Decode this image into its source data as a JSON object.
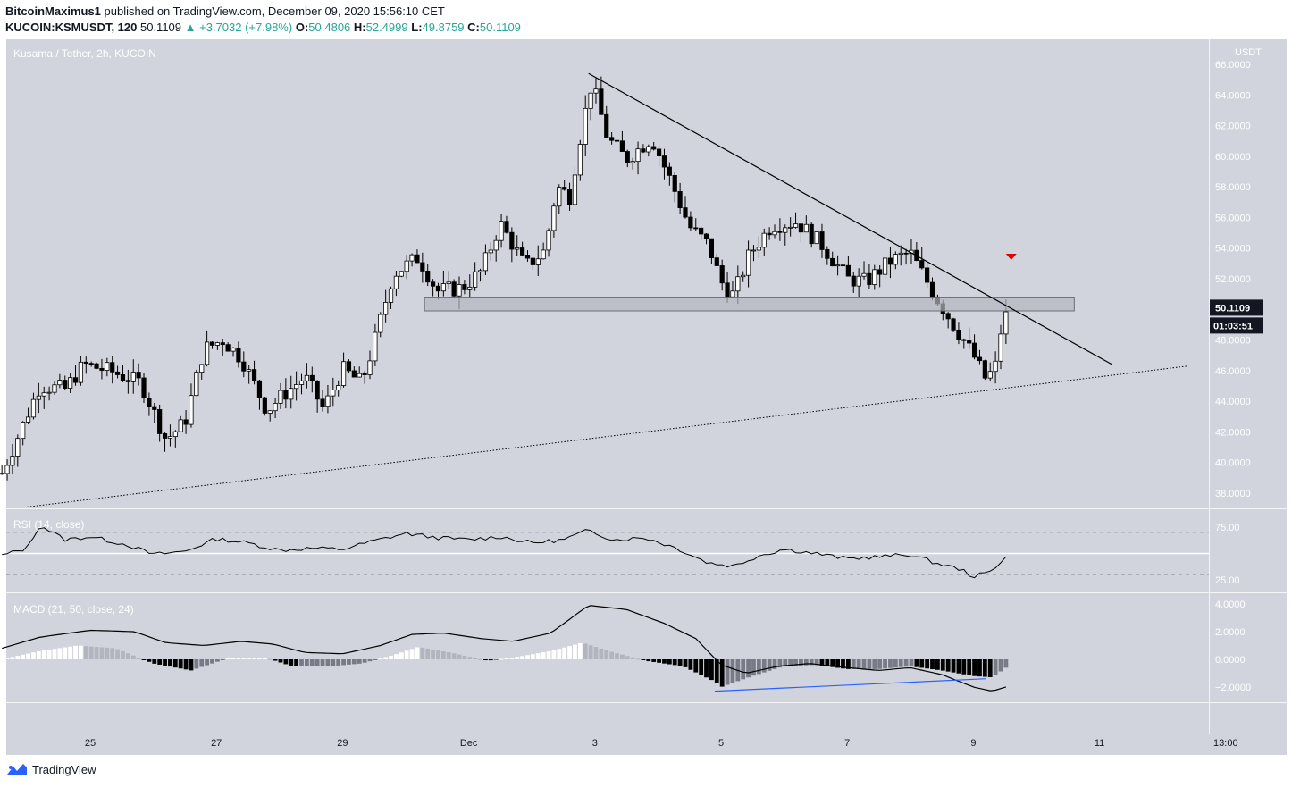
{
  "header": {
    "publisher": "BitcoinMaximus1",
    "published_text": "published on TradingView.com, December 09, 2020 15:56:10 CET",
    "symbol": "KUCOIN:KSMUSDT, 120",
    "last": "50.1109",
    "change": "▲ +3.7032 (+7.98%)",
    "o_label": "O:",
    "o": "50.4806",
    "h_label": "H:",
    "h": "52.4999",
    "l_label": "L:",
    "l": "49.8759",
    "c_label": "C:",
    "c": "50.1109"
  },
  "footer": {
    "brand": "TradingView"
  },
  "colors": {
    "pane_bg": "#d1d4dc",
    "up_candle": "#ffffff",
    "down_candle": "#000000",
    "trendline": "#000000",
    "zone_fill": "#b4b7bf",
    "signal_arrow": "#e00000",
    "divergence_line": "#2962ff",
    "price_label_bg": "#131722"
  },
  "chart_data": [
    {
      "type": "candlestick",
      "title": "Kusama / Tether, 2h, KUCOIN",
      "currency": "USDT",
      "ylim": [
        37,
        67
      ],
      "y_ticks": [
        "66.0000",
        "64.0000",
        "62.0000",
        "60.0000",
        "58.0000",
        "56.0000",
        "54.0000",
        "52.0000",
        "50.0000",
        "48.0000",
        "46.0000",
        "44.0000",
        "42.0000",
        "40.0000",
        "38.0000"
      ],
      "x_ticks": [
        "25",
        "27",
        "29",
        "Dec",
        "3",
        "5",
        "7",
        "9",
        "11",
        "13:00"
      ],
      "last_price_label": "50.1109",
      "countdown_label": "01:03:51",
      "anchors_x_day_price": [
        [
          23.6,
          39.3
        ],
        [
          24.2,
          45.0
        ],
        [
          24.6,
          44.8
        ],
        [
          24.9,
          46.4
        ],
        [
          25.3,
          46.0
        ],
        [
          25.8,
          45.2
        ],
        [
          26.2,
          41.5
        ],
        [
          26.5,
          42.6
        ],
        [
          26.8,
          47.4
        ],
        [
          27.1,
          48.0
        ],
        [
          27.4,
          46.8
        ],
        [
          27.8,
          43.4
        ],
        [
          28.0,
          44.2
        ],
        [
          28.4,
          45.6
        ],
        [
          28.7,
          43.5
        ],
        [
          29.0,
          46.1
        ],
        [
          29.3,
          45.2
        ],
        [
          29.5,
          47.8
        ],
        [
          29.8,
          52.3
        ],
        [
          30.2,
          53.4
        ],
        [
          30.5,
          51.2
        ],
        [
          30.9,
          51.4
        ],
        [
          31.2,
          52.5
        ],
        [
          31.5,
          55.6
        ],
        [
          31.9,
          52.8
        ],
        [
          32.2,
          53.8
        ],
        [
          32.4,
          58.0
        ],
        [
          32.6,
          57.4
        ],
        [
          32.8,
          62.0
        ],
        [
          32.95,
          64.8
        ],
        [
          33.2,
          61.2
        ],
        [
          33.5,
          59.8
        ],
        [
          33.9,
          61.2
        ],
        [
          34.2,
          58.4
        ],
        [
          34.5,
          55.4
        ],
        [
          34.8,
          54.2
        ],
        [
          35.0,
          51.8
        ],
        [
          35.2,
          50.9
        ],
        [
          35.45,
          53.6
        ],
        [
          35.8,
          55.5
        ],
        [
          36.2,
          55.7
        ],
        [
          36.6,
          54.2
        ],
        [
          37.0,
          52.0
        ],
        [
          37.3,
          51.8
        ],
        [
          37.7,
          53.2
        ],
        [
          38.0,
          53.7
        ],
        [
          38.35,
          51.2
        ],
        [
          38.7,
          48.9
        ],
        [
          39.0,
          47.0
        ],
        [
          39.2,
          45.4
        ],
        [
          39.35,
          46.3
        ],
        [
          39.45,
          49.0
        ],
        [
          39.58,
          50.1
        ]
      ],
      "range_zone": {
        "x_from": 30.3,
        "x_to": 40.6,
        "y_low": 49.9,
        "y_high": 50.8
      },
      "descending_trendline": {
        "x1": 32.9,
        "y1": 65.4,
        "x2": 41.2,
        "y2": 46.4
      },
      "ascending_support_line": {
        "x1": 24.0,
        "y1": 37.1,
        "x2": 42.4,
        "y2": 46.3,
        "style": "dotted"
      },
      "sell_signal_arrow": {
        "x": 39.6,
        "y": 53.4
      }
    },
    {
      "type": "line",
      "title": "RSI (14, close)",
      "levels": [
        70,
        50,
        30
      ],
      "ylim": [
        15,
        95
      ],
      "y_ticks": [
        "75.00",
        "25.00"
      ],
      "anchors_x_day_value": [
        [
          23.6,
          48
        ],
        [
          24.0,
          55
        ],
        [
          24.2,
          77
        ],
        [
          24.6,
          63
        ],
        [
          25.0,
          66
        ],
        [
          25.6,
          58
        ],
        [
          26.0,
          49
        ],
        [
          26.5,
          52
        ],
        [
          27.0,
          64
        ],
        [
          27.5,
          60
        ],
        [
          28.0,
          53
        ],
        [
          28.5,
          55
        ],
        [
          29.0,
          54
        ],
        [
          29.5,
          62
        ],
        [
          30.0,
          69
        ],
        [
          30.5,
          65
        ],
        [
          31.0,
          63
        ],
        [
          31.5,
          66
        ],
        [
          32.0,
          60
        ],
        [
          32.5,
          63
        ],
        [
          32.9,
          72
        ],
        [
          33.3,
          63
        ],
        [
          33.8,
          65
        ],
        [
          34.3,
          55
        ],
        [
          34.8,
          41
        ],
        [
          35.2,
          38
        ],
        [
          35.6,
          48
        ],
        [
          36.0,
          54
        ],
        [
          36.5,
          50
        ],
        [
          37.0,
          45
        ],
        [
          37.5,
          47
        ],
        [
          38.0,
          49
        ],
        [
          38.4,
          41
        ],
        [
          38.8,
          35
        ],
        [
          39.0,
          28
        ],
        [
          39.3,
          33
        ],
        [
          39.45,
          44
        ],
        [
          39.58,
          52
        ]
      ]
    },
    {
      "type": "bar",
      "title": "MACD (21, 50, close, 24)",
      "ylim": [
        -3,
        4.2
      ],
      "y_ticks": [
        "4.0000",
        "2.0000",
        "0.0000",
        "−2.0000"
      ],
      "macd_anchors_x_day_value": [
        [
          23.6,
          0.8
        ],
        [
          24.2,
          1.6
        ],
        [
          25.0,
          2.1
        ],
        [
          25.7,
          2.0
        ],
        [
          26.2,
          1.2
        ],
        [
          26.8,
          1.0
        ],
        [
          27.4,
          1.3
        ],
        [
          27.9,
          1.1
        ],
        [
          28.4,
          0.5
        ],
        [
          29.0,
          0.4
        ],
        [
          29.6,
          1.0
        ],
        [
          30.1,
          1.8
        ],
        [
          30.6,
          1.9
        ],
        [
          31.2,
          1.5
        ],
        [
          31.7,
          1.3
        ],
        [
          32.3,
          1.9
        ],
        [
          32.9,
          3.9
        ],
        [
          33.5,
          3.6
        ],
        [
          34.1,
          2.6
        ],
        [
          34.6,
          1.5
        ],
        [
          35.0,
          -0.4
        ],
        [
          35.4,
          -1.0
        ],
        [
          35.9,
          -0.5
        ],
        [
          36.4,
          -0.3
        ],
        [
          37.0,
          -0.6
        ],
        [
          37.5,
          -0.8
        ],
        [
          38.0,
          -0.6
        ],
        [
          38.5,
          -1.1
        ],
        [
          39.0,
          -2.0
        ],
        [
          39.3,
          -2.3
        ],
        [
          39.58,
          -1.9
        ]
      ],
      "hist_anchors_x_day_value": [
        [
          23.6,
          0.0
        ],
        [
          24.2,
          0.6
        ],
        [
          24.8,
          1.0
        ],
        [
          25.4,
          0.8
        ],
        [
          26.0,
          -0.3
        ],
        [
          26.6,
          -0.8
        ],
        [
          27.2,
          0.1
        ],
        [
          27.8,
          0.1
        ],
        [
          28.2,
          -0.5
        ],
        [
          28.8,
          -0.5
        ],
        [
          29.3,
          -0.3
        ],
        [
          29.8,
          0.3
        ],
        [
          30.2,
          0.9
        ],
        [
          30.7,
          0.5
        ],
        [
          31.3,
          -0.1
        ],
        [
          31.8,
          0.2
        ],
        [
          32.3,
          0.6
        ],
        [
          32.8,
          1.2
        ],
        [
          33.3,
          0.5
        ],
        [
          33.8,
          -0.1
        ],
        [
          34.4,
          -0.5
        ],
        [
          34.9,
          -1.6
        ],
        [
          35.0,
          -2.0
        ],
        [
          35.5,
          -1.2
        ],
        [
          36.0,
          -0.5
        ],
        [
          36.5,
          -0.4
        ],
        [
          37.0,
          -0.7
        ],
        [
          37.5,
          -0.7
        ],
        [
          38.0,
          -0.5
        ],
        [
          38.5,
          -0.8
        ],
        [
          39.0,
          -1.2
        ],
        [
          39.3,
          -1.3
        ],
        [
          39.58,
          -0.4
        ]
      ],
      "bullish_divergence_line": {
        "x1": 34.9,
        "y1": -2.3,
        "x2": 39.2,
        "y2": -1.4
      }
    }
  ]
}
